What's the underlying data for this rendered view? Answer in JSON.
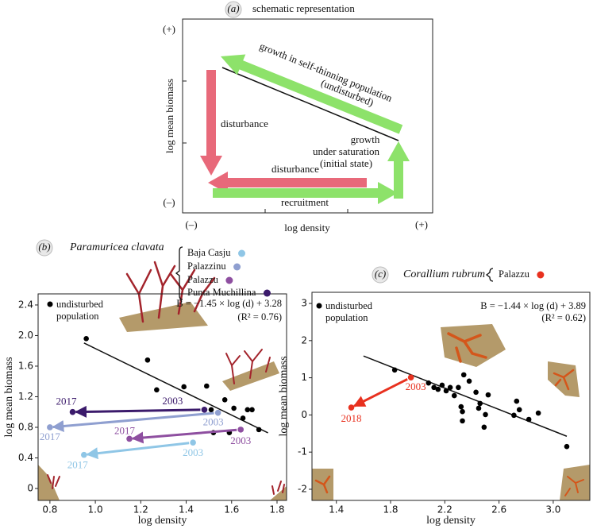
{
  "schematic": {
    "panel_label": "(a)",
    "title": "schematic representation",
    "y_label": "log mean biomass",
    "x_label": "log density",
    "y_high": "(+)",
    "y_low": "(–)",
    "x_low": "(–)",
    "x_high": "(+)",
    "self_thinning": [
      "growth in self-thinning population",
      "(undisturbed)"
    ],
    "disturbance_vertical": "disturbance",
    "disturbance_horizontal": "disturbance",
    "recruitment": "recruitment",
    "saturation": [
      "growth",
      "under saturation",
      "(initial state)"
    ]
  },
  "chart_data": [
    {
      "type": "scatter",
      "panel_label": "(b)",
      "title": "Paramuricea clavata",
      "x_label": "log density",
      "y_label": "log mean biomass",
      "xlim": [
        0.748,
        1.842
      ],
      "ylim": [
        -0.156,
        2.545
      ],
      "xticks": [
        0.8,
        {
          "value": 1,
          "label": "1.0"
        },
        1.2,
        1.4,
        1.6,
        1.8
      ],
      "yticks": [
        0,
        0.4,
        0.8,
        1.2,
        1.6,
        {
          "value": 2,
          "label": "2.0"
        },
        2.4
      ],
      "fit": {
        "equation": "B = −1.45 × log (d) + 3.28",
        "r2": "(R² = 0.76)",
        "slope": -1.45,
        "intercept": 3.28,
        "x_range": [
          0.95,
          1.76
        ]
      },
      "series": [
        {
          "name": "undisturbed population",
          "color": "#000000",
          "x": [
            0.96,
            1.23,
            1.27,
            1.39,
            1.49,
            1.57,
            1.51,
            1.61,
            1.67,
            1.69,
            1.52,
            1.59,
            1.72,
            1.65
          ],
          "values": [
            1.96,
            1.68,
            1.29,
            1.33,
            1.34,
            1.16,
            1.03,
            1.05,
            1.03,
            1.03,
            0.73,
            0.73,
            0.77,
            0.92
          ]
        },
        {
          "name": "Baja Casju",
          "color": "#8fc6e6",
          "x": [
            1.43,
            0.95
          ],
          "values": [
            0.6,
            0.44
          ],
          "labels": [
            "2003",
            "2017"
          ]
        },
        {
          "name": "Palazzinu",
          "color": "#8f9fd0",
          "x": [
            1.54,
            0.8
          ],
          "values": [
            0.99,
            0.8
          ],
          "labels": [
            "2003",
            "2017"
          ]
        },
        {
          "name": "Palazzu",
          "color": "#8e4fa0",
          "x": [
            1.64,
            1.15
          ],
          "values": [
            0.77,
            0.65
          ],
          "labels": [
            "2003",
            "2017"
          ]
        },
        {
          "name": "Punta Muchillina",
          "color": "#3b1a6b",
          "x": [
            1.48,
            0.9
          ],
          "values": [
            1.03,
            1.0
          ],
          "labels": [
            "2003",
            "2017"
          ]
        }
      ]
    },
    {
      "type": "scatter",
      "panel_label": "(c)",
      "title": "Corallium rubrum",
      "x_label": "log density",
      "y_label": "log mean biomass",
      "xlim": [
        1.22,
        3.27
      ],
      "ylim": [
        -2.3,
        3.3
      ],
      "xticks": [
        1.4,
        1.8,
        2.2,
        2.6,
        {
          "value": 3,
          "label": "3.0"
        }
      ],
      "yticks": [
        -2,
        -1,
        0,
        1,
        2,
        3
      ],
      "fit": {
        "equation": "B = −1.44 × log (d) + 3.89",
        "r2": "(R² = 0.62)",
        "slope": -1.44,
        "intercept": 3.89,
        "x_range": [
          1.6,
          3.1
        ]
      },
      "series": [
        {
          "name": "undisturbed population",
          "color": "#000000",
          "x": [
            1.83,
            2.08,
            2.12,
            2.15,
            2.18,
            2.21,
            2.24,
            2.27,
            2.3,
            2.34,
            2.38,
            2.43,
            2.32,
            2.33,
            2.33,
            2.45,
            2.46,
            2.5,
            2.49,
            2.52,
            2.73,
            2.75,
            2.82,
            2.89,
            2.71,
            3.1
          ],
          "values": [
            1.21,
            0.86,
            0.74,
            0.69,
            0.8,
            0.65,
            0.74,
            0.52,
            0.74,
            1.08,
            0.91,
            0.61,
            0.22,
            0.09,
            -0.16,
            0.18,
            0.31,
            0.01,
            -0.33,
            0.54,
            0.37,
            0.14,
            -0.12,
            0.05,
            -0.01,
            -0.85
          ]
        },
        {
          "name": "Palazzu",
          "color": "#e8311f",
          "x": [
            1.95,
            1.51
          ],
          "values": [
            1.01,
            0.2
          ],
          "labels": [
            "2003",
            "2018"
          ]
        }
      ]
    }
  ]
}
